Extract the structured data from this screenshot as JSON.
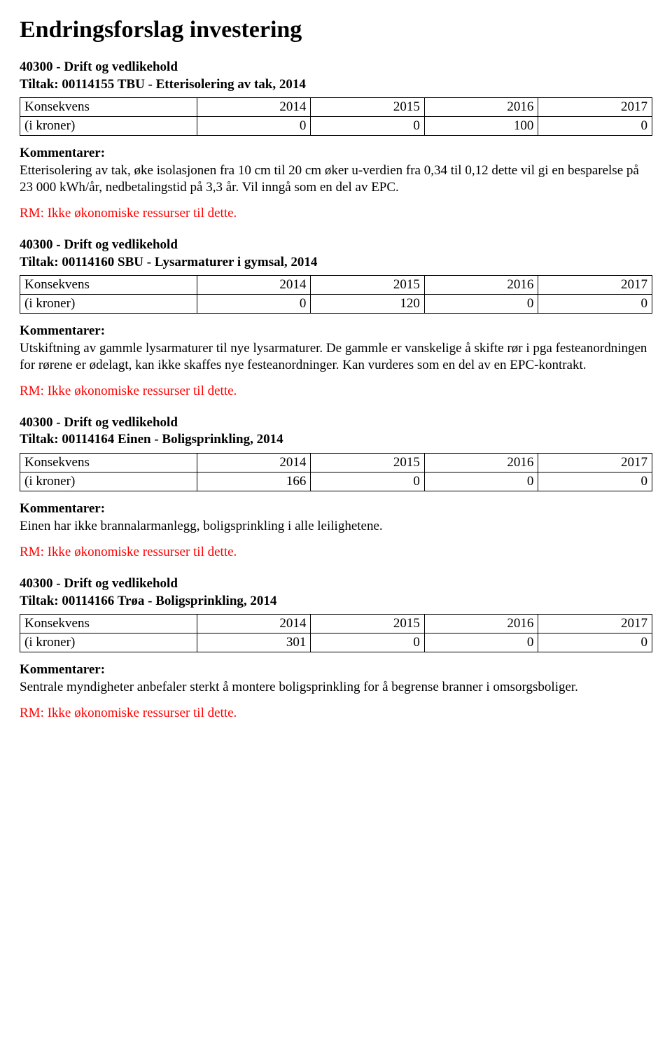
{
  "page_title": "Endringsforslag investering",
  "common": {
    "comments_label": "Kommentarer:",
    "rm_note": "RM: Ikke økonomiske ressurser til dette."
  },
  "table": {
    "col_widths": [
      "28%",
      "18%",
      "18%",
      "18%",
      "18%"
    ],
    "header_label": "Konsekvens",
    "years": [
      "2014",
      "2015",
      "2016",
      "2017"
    ],
    "row_label": "(i kroner)"
  },
  "sections": [
    {
      "dept": "40300 - Drift og vedlikehold",
      "tiltak": "Tiltak: 00114155 TBU - Etterisolering av tak, 2014",
      "values": [
        "0",
        "0",
        "100",
        "0"
      ],
      "comment": "Etterisolering av tak, øke isolasjonen fra 10 cm til 20 cm øker u-verdien fra 0,34 til 0,12 dette vil gi en besparelse på 23 000 kWh/år, nedbetalingstid på 3,3 år. Vil inngå som en del av EPC."
    },
    {
      "dept": "40300 - Drift og vedlikehold",
      "tiltak": "Tiltak: 00114160 SBU - Lysarmaturer i gymsal, 2014",
      "values": [
        "0",
        "120",
        "0",
        "0"
      ],
      "comment": "Utskiftning av gammle lysarmaturer til nye lysarmaturer. De gammle er vanskelige å skifte rør i pga festeanordningen for rørene er ødelagt, kan ikke skaffes nye festeanordninger. Kan vurderes som en del av en EPC-kontrakt."
    },
    {
      "dept": "40300 - Drift og vedlikehold",
      "tiltak": "Tiltak: 00114164 Einen - Boligsprinkling, 2014",
      "values": [
        "166",
        "0",
        "0",
        "0"
      ],
      "comment": "Einen har ikke brannalarmanlegg, boligsprinkling i alle leilighetene."
    },
    {
      "dept": "40300 - Drift og vedlikehold",
      "tiltak": "Tiltak: 00114166 Trøa - Boligsprinkling, 2014",
      "values": [
        "301",
        "0",
        "0",
        "0"
      ],
      "comment": "Sentrale myndigheter anbefaler sterkt å montere boligsprinkling for å begrense branner i omsorgsboliger."
    }
  ]
}
